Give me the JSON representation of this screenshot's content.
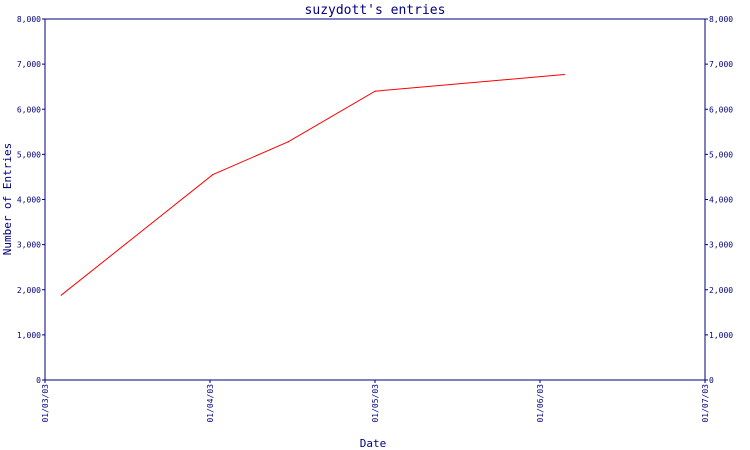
{
  "chart_data": {
    "type": "line",
    "title": "suzydott's entries",
    "xlabel": "Date",
    "ylabel": "Number of Entries",
    "x_ticks": [
      "01/03/03",
      "01/04/03",
      "01/05/03",
      "01/06/03",
      "01/07/03"
    ],
    "xlim": [
      "2003-03-01",
      "2003-07-01"
    ],
    "y_ticks": [
      "0",
      "1,000",
      "2,000",
      "3,000",
      "4,000",
      "5,000",
      "6,000",
      "7,000",
      "8,000"
    ],
    "ylim": [
      0,
      8000
    ],
    "grid": false,
    "series": [
      {
        "x": [
          "2003-03-04",
          "2003-04-01",
          "2003-04-15",
          "2003-05-01",
          "2003-06-05"
        ],
        "values": [
          1880,
          4550,
          5280,
          6400,
          6770
        ]
      }
    ],
    "colors": {
      "line": "#ff0000",
      "axis": "#000080",
      "text": "#000080"
    }
  }
}
